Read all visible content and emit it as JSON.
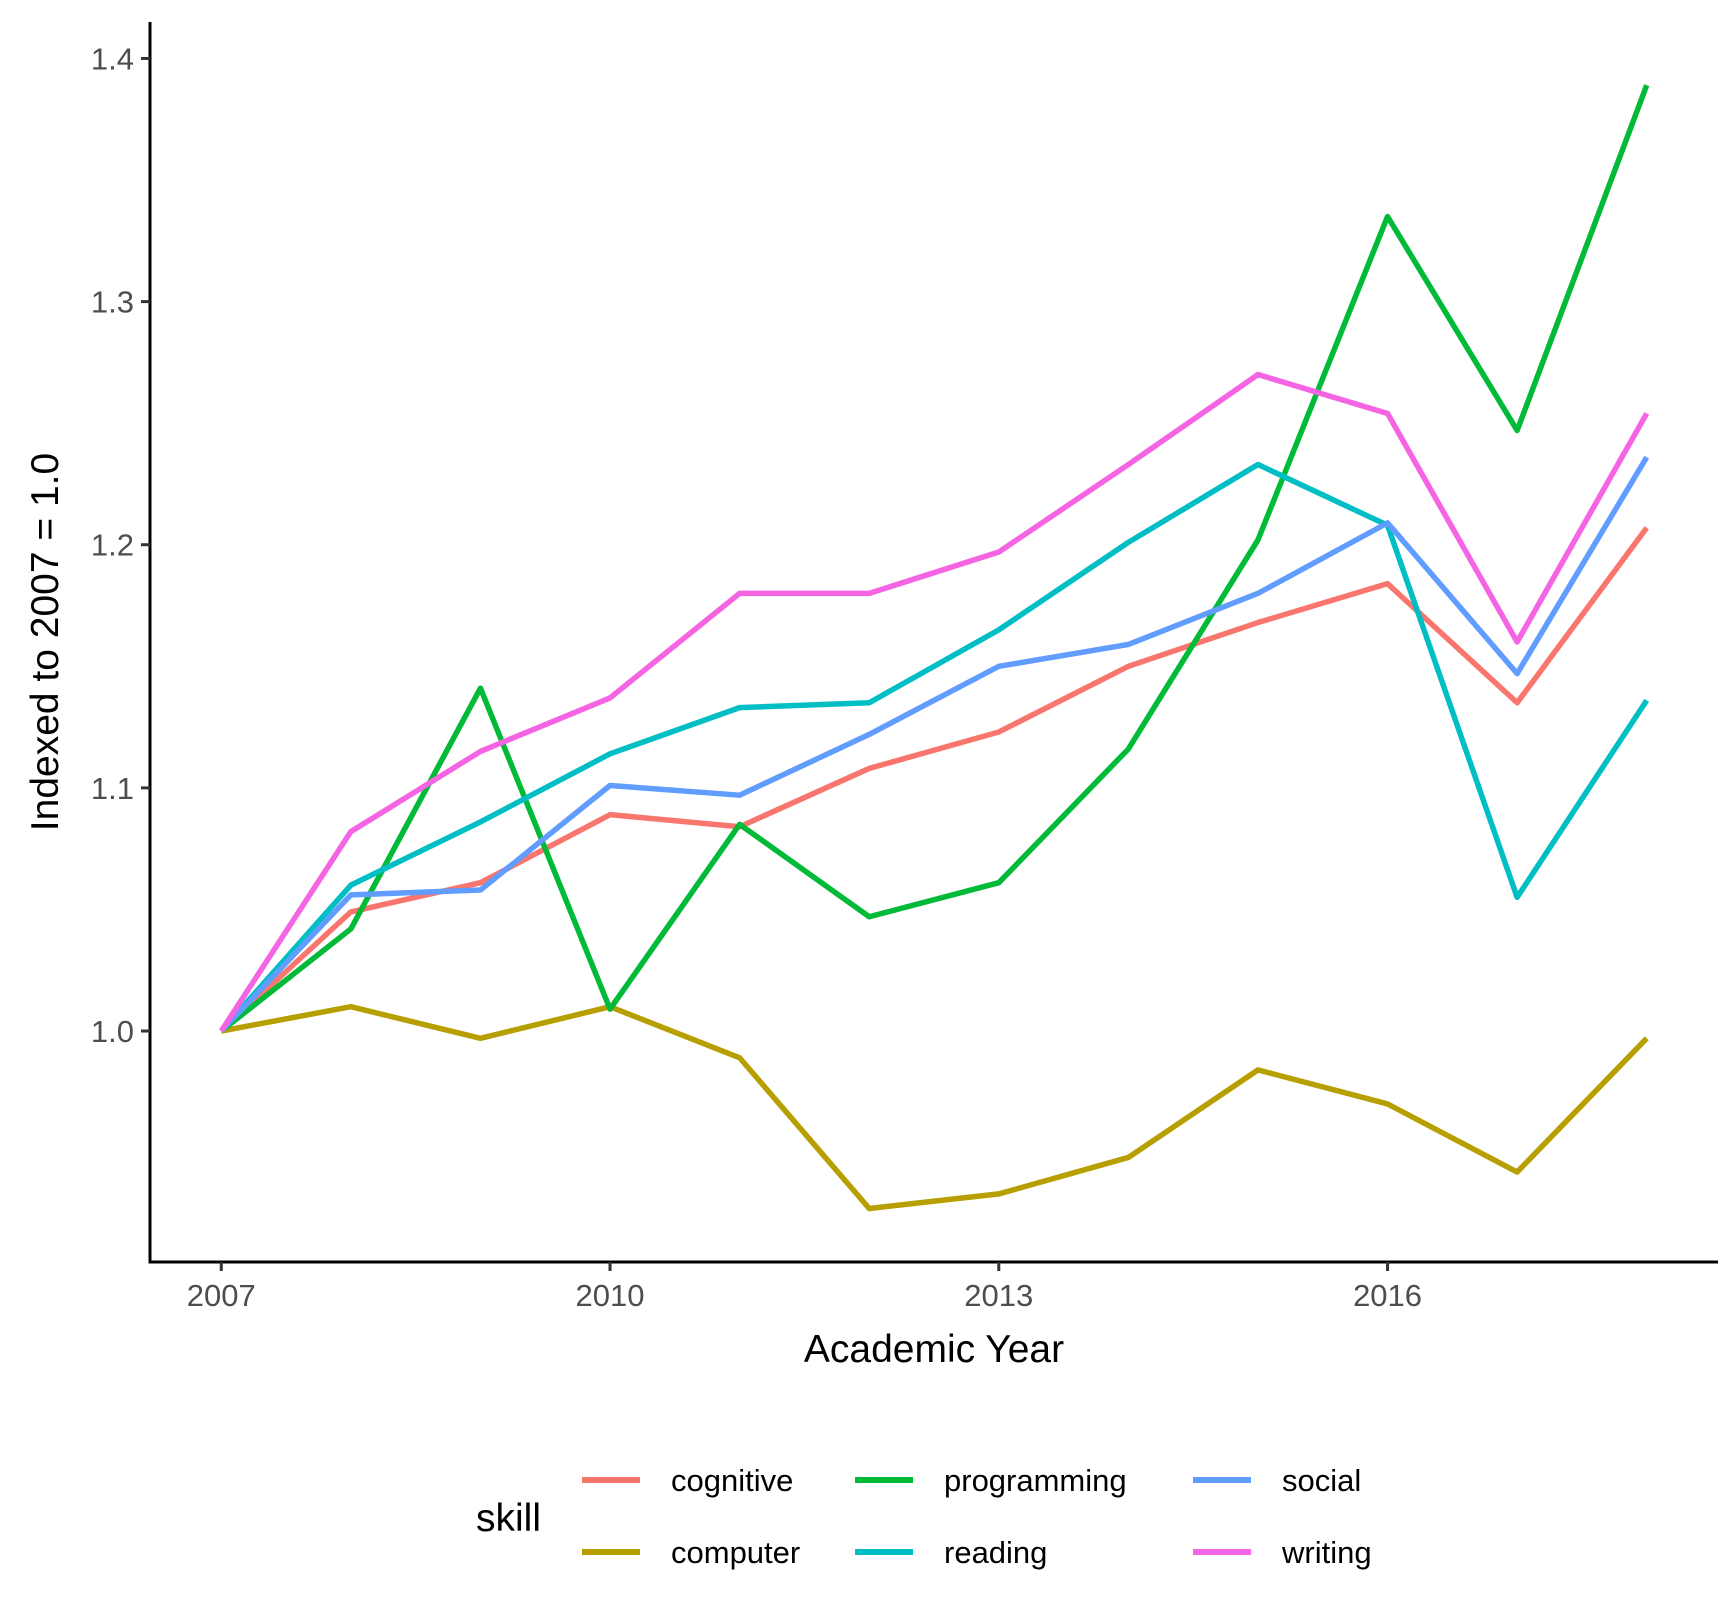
{
  "chart_data": {
    "type": "line",
    "title": "",
    "xlabel": "Academic Year",
    "ylabel": "Indexed to 2007 = 1.0",
    "x": [
      2007,
      2008,
      2009,
      2010,
      2011,
      2012,
      2013,
      2014,
      2015,
      2016,
      2017,
      2018
    ],
    "xticks": [
      2007,
      2010,
      2013,
      2016
    ],
    "xtick_labels": [
      "2007",
      "2010",
      "2013",
      "2016"
    ],
    "yticks": [
      1.0,
      1.1,
      1.2,
      1.3,
      1.4
    ],
    "ytick_labels": [
      "1.0",
      "1.1",
      "1.2",
      "1.3",
      "1.4"
    ],
    "xlim": [
      2006.45,
      2018.55
    ],
    "ylim": [
      0.905,
      1.415
    ],
    "grid": false,
    "legend": {
      "title": "skill",
      "position": "bottom"
    },
    "series": [
      {
        "name": "cognitive",
        "color": "#F8766D",
        "values": [
          1.0,
          1.049,
          1.061,
          1.089,
          1.084,
          1.108,
          1.123,
          1.15,
          1.168,
          1.184,
          1.135,
          1.207
        ]
      },
      {
        "name": "computer",
        "color": "#B79F00",
        "values": [
          1.0,
          1.01,
          0.997,
          1.01,
          0.989,
          0.927,
          0.933,
          0.948,
          0.984,
          0.97,
          0.942,
          0.997
        ]
      },
      {
        "name": "programming",
        "color": "#00BA38",
        "values": [
          1.0,
          1.042,
          1.141,
          1.009,
          1.085,
          1.047,
          1.061,
          1.116,
          1.202,
          1.335,
          1.247,
          1.389
        ]
      },
      {
        "name": "reading",
        "color": "#00BFC4",
        "values": [
          1.0,
          1.06,
          1.086,
          1.114,
          1.133,
          1.135,
          1.165,
          1.201,
          1.233,
          1.208,
          1.055,
          1.136
        ]
      },
      {
        "name": "social",
        "color": "#619CFF",
        "values": [
          1.0,
          1.056,
          1.058,
          1.101,
          1.097,
          1.122,
          1.15,
          1.159,
          1.18,
          1.209,
          1.147,
          1.236
        ]
      },
      {
        "name": "writing",
        "color": "#F564E3",
        "values": [
          1.0,
          1.082,
          1.115,
          1.137,
          1.18,
          1.18,
          1.197,
          1.233,
          1.27,
          1.254,
          1.16,
          1.254
        ]
      }
    ]
  }
}
